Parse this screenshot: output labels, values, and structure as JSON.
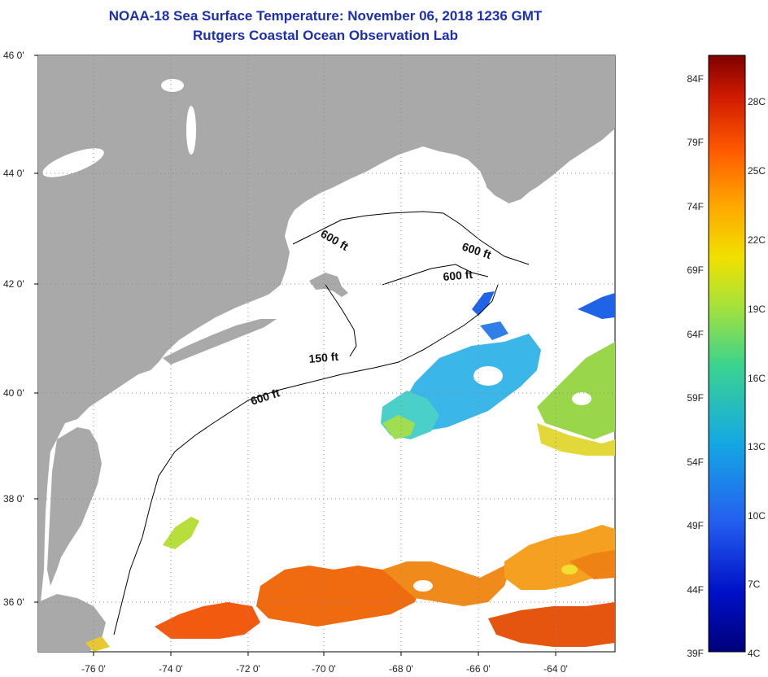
{
  "title_line1": "NOAA-18 Sea Surface Temperature:  November 06, 2018 1236 GMT",
  "title_line2": "Rutgers Coastal Ocean Observation Lab",
  "lat_labels": [
    "46 0'",
    "44 0'",
    "42 0'",
    "40 0'",
    "38 0'",
    "36 0'"
  ],
  "lon_labels": [
    "-76 0'",
    "-74 0'",
    "-72 0'",
    "-70 0'",
    "-68 0'",
    "-66 0'",
    "-64 0'"
  ],
  "contour_labels": [
    "600 ft",
    "600 ft",
    "600 ft",
    "150 ft",
    "600 ft"
  ],
  "colorbar": {
    "fahrenheit": [
      "84F",
      "79F",
      "74F",
      "69F",
      "64F",
      "59F",
      "54F",
      "49F",
      "44F",
      "39F"
    ],
    "celsius": [
      "28C",
      "25C",
      "22C",
      "19C",
      "16C",
      "13C",
      "10C",
      "7C",
      "4C"
    ],
    "colors": [
      "#7f0000",
      "#d11b00",
      "#ff5a00",
      "#ffa600",
      "#f0e100",
      "#a7e23a",
      "#3bd38f",
      "#14a8e4",
      "#2460ef",
      "#0010c8",
      "#000080"
    ]
  },
  "colors": {
    "land": "#a9a9a9",
    "ocean": "#ffffff",
    "title": "#1c2fb0"
  }
}
